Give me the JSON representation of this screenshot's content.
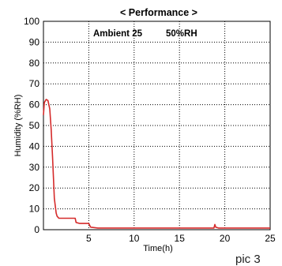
{
  "chart_data": {
    "type": "line",
    "title": "< Performance >",
    "xlabel": "Time(h)",
    "ylabel": "Humidity (%RH)",
    "xlim": [
      0,
      25
    ],
    "ylim": [
      0,
      100
    ],
    "x_ticks": [
      5,
      10,
      15,
      20,
      25
    ],
    "y_ticks": [
      0,
      10,
      20,
      30,
      40,
      50,
      60,
      70,
      80,
      90,
      100
    ],
    "grid": true,
    "annotations": [
      "Ambient 25",
      "50%RH"
    ],
    "series": [
      {
        "color": "#d52b2b",
        "x": [
          0.0,
          0.1,
          0.3,
          0.5,
          0.7,
          0.85,
          1.0,
          1.2,
          1.4,
          1.5,
          1.7,
          2.0,
          2.5,
          3.0,
          3.5,
          3.6,
          4.0,
          4.5,
          5.0,
          5.2,
          6.0,
          10.0,
          15.0,
          18.8,
          18.9,
          19.0,
          19.3,
          20.0,
          25.0
        ],
        "y": [
          55,
          61,
          62.5,
          62,
          58,
          48,
          35,
          15,
          8,
          6.5,
          5.5,
          5.5,
          5.5,
          5.5,
          5.5,
          3.5,
          3,
          3,
          3,
          1.2,
          0.8,
          0.8,
          0.8,
          0.8,
          2.5,
          1.2,
          0.8,
          0.8,
          0.8
        ]
      }
    ]
  },
  "footer": {
    "pic_label": "pic 3"
  }
}
